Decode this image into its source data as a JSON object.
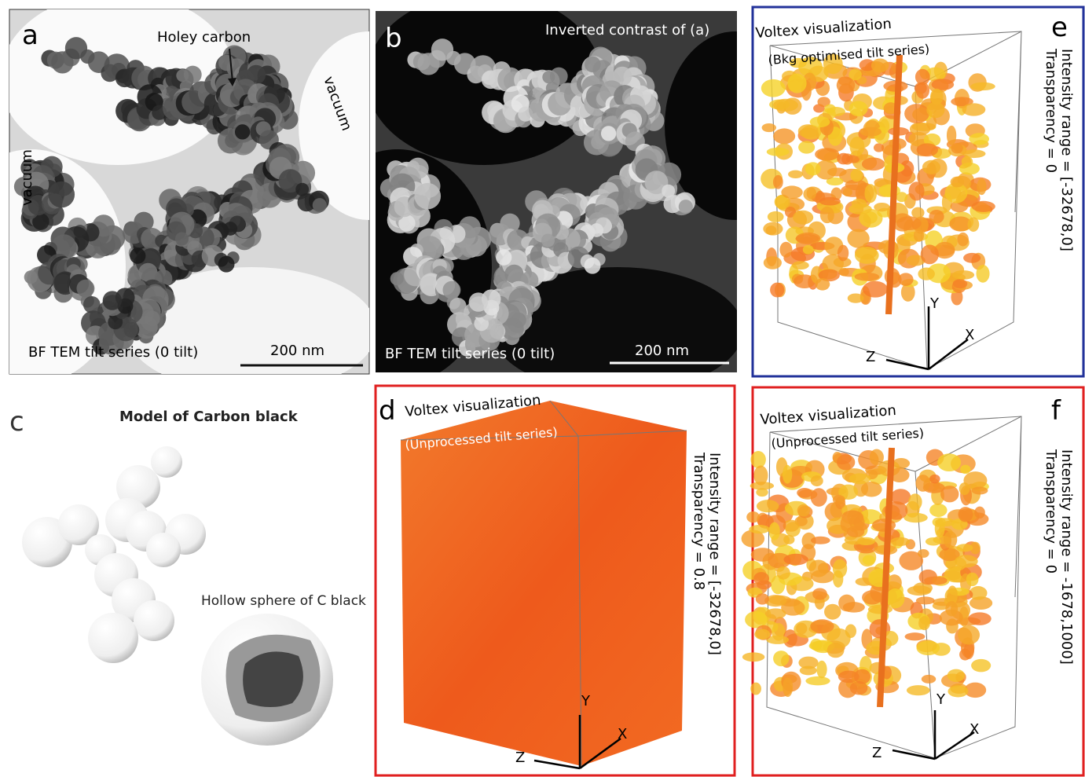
{
  "panels": {
    "a": {
      "label": "a",
      "holey_carbon": "Holey carbon",
      "vacuum_right": "vacuum",
      "vacuum_left": "vacuum",
      "caption": "BF TEM tilt series (0 tilt)",
      "scale_bar": "200 nm"
    },
    "b": {
      "label": "b",
      "title": "Inverted contrast of (a)",
      "caption": "BF TEM tilt series (0 tilt)",
      "scale_bar": "200 nm"
    },
    "c": {
      "label": "c",
      "title": "Model of Carbon black",
      "hollow": "Hollow sphere of C black"
    },
    "d": {
      "label": "d",
      "title": "Voltex visualization",
      "subtitle": "(Unprocessed tilt series)",
      "intensity": "Intensity range = [-32678,0]",
      "transparency": "Transparency = 0.8",
      "axes": {
        "y": "Y",
        "x": "X",
        "z": "Z"
      }
    },
    "e": {
      "label": "e",
      "title": "Voltex visualization",
      "subtitle": "(Bkg optimised  tilt series)",
      "intensity": "Intensity range = [-32678,0]",
      "transparency": "Transparency = 0",
      "axes": {
        "y": "Y",
        "x": "X",
        "z": "Z"
      }
    },
    "f": {
      "label": "f",
      "title": "Voltex visualization",
      "subtitle": "(Unprocessed tilt series)",
      "intensity": "Intensity range = -1678,1000]",
      "transparency": "Transparency = 0",
      "axes": {
        "y": "Y",
        "x": "X",
        "z": "Z"
      }
    }
  }
}
